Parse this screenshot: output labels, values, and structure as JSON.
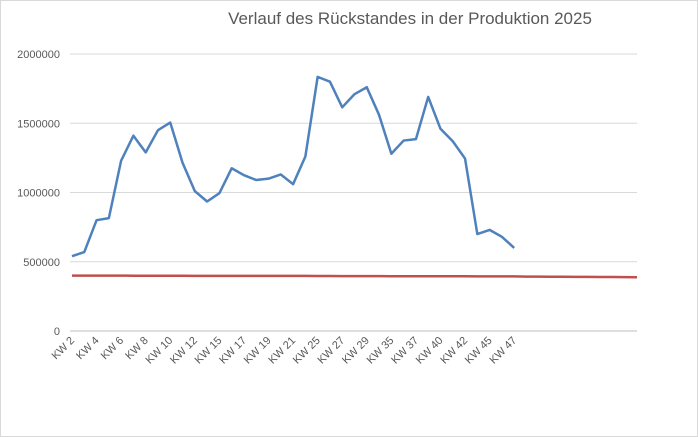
{
  "chart_data": {
    "type": "line",
    "title": "Verlauf des Rückstandes in der Produktion 2025",
    "categories": [
      "KW 2",
      null,
      "KW 4",
      null,
      "KW 6",
      null,
      "KW 8",
      null,
      "KW 10",
      null,
      "KW 12",
      null,
      "KW 15",
      null,
      "KW 17",
      null,
      "KW 19",
      null,
      "KW 21",
      null,
      "KW 25",
      null,
      "KW 27",
      null,
      "KW 29",
      null,
      "KW 35",
      null,
      "KW 37",
      null,
      "KW 40",
      null,
      "KW 42",
      null,
      "KW 45",
      null,
      "KW 47",
      null,
      null,
      null,
      null,
      null,
      null,
      null,
      null,
      null,
      null
    ],
    "series": [
      {
        "color": "#4f81bd",
        "values": [
          540000,
          570000,
          800000,
          815000,
          1230000,
          1410000,
          1290000,
          1450000,
          1505000,
          1215000,
          1010000,
          935000,
          995000,
          1175000,
          1125000,
          1090000,
          1100000,
          1130000,
          1060000,
          1260000,
          1835000,
          1800000,
          1615000,
          1710000,
          1760000,
          1560000,
          1280000,
          1375000,
          1385000,
          1690000,
          1460000,
          1370000,
          1245000,
          700000,
          730000,
          680000,
          600000,
          null,
          null,
          null,
          null,
          null,
          null,
          null,
          null,
          null,
          null
        ]
      },
      {
        "color": "#c0504d",
        "values": [
          400000,
          400000,
          400000,
          400000,
          400000,
          399000,
          399000,
          399000,
          399000,
          399000,
          398000,
          398000,
          398000,
          398000,
          398000,
          398000,
          398000,
          398000,
          398000,
          398000,
          397000,
          397000,
          396000,
          396000,
          396000,
          396000,
          395000,
          395000,
          395000,
          395000,
          395000,
          395000,
          395000,
          394000,
          394000,
          394000,
          394000,
          393000,
          393000,
          392000,
          392000,
          391000,
          391000,
          390000,
          390000,
          389000,
          388000
        ]
      }
    ],
    "ylim": [
      0,
      2000000
    ],
    "yticks": [
      0,
      500000,
      1000000,
      1500000,
      2000000
    ],
    "grid": true
  }
}
